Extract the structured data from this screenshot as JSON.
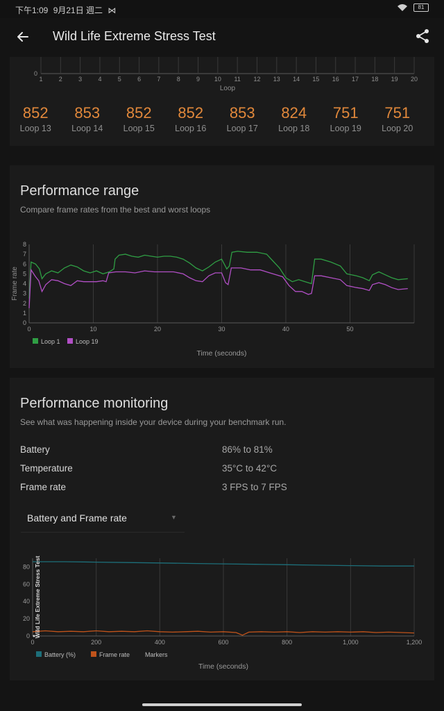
{
  "status": {
    "time": "下午1:09",
    "date": "9月21日 週二",
    "extra_icon": "nfc-icon",
    "battery": "81"
  },
  "app_bar": {
    "title": "Wild Life Extreme Stress Test"
  },
  "loops": {
    "axis_label": "Loop",
    "ticks": [
      "1",
      "2",
      "3",
      "4",
      "5",
      "6",
      "7",
      "8",
      "9",
      "10",
      "11",
      "12",
      "13",
      "14",
      "15",
      "16",
      "17",
      "18",
      "19",
      "20"
    ],
    "y_tick": "0",
    "scores": [
      {
        "value": "852",
        "label": "Loop 13"
      },
      {
        "value": "853",
        "label": "Loop 14"
      },
      {
        "value": "852",
        "label": "Loop 15"
      },
      {
        "value": "852",
        "label": "Loop 16"
      },
      {
        "value": "853",
        "label": "Loop 17"
      },
      {
        "value": "824",
        "label": "Loop 18"
      },
      {
        "value": "751",
        "label": "Loop 19"
      },
      {
        "value": "751",
        "label": "Loop 20"
      }
    ]
  },
  "performance_range": {
    "title": "Performance range",
    "subtitle": "Compare frame rates from the best and worst loops"
  },
  "performance_monitoring": {
    "title": "Performance monitoring",
    "subtitle": "See what was happening inside your device during your benchmark run.",
    "metrics": [
      {
        "label": "Battery",
        "value": "86% to 81%"
      },
      {
        "label": "Temperature",
        "value": "35°C to 42°C"
      },
      {
        "label": "Frame rate",
        "value": "3 FPS to 7 FPS"
      }
    ],
    "dropdown": "Battery and Frame rate"
  },
  "chart_data": [
    {
      "type": "line",
      "title": "",
      "xlabel": "Time (seconds)",
      "ylabel": "Frame rate",
      "xlim": [
        0,
        60
      ],
      "ylim": [
        0,
        8
      ],
      "x_ticks": [
        0,
        10,
        20,
        30,
        40,
        50
      ],
      "y_ticks": [
        0,
        1,
        2,
        3,
        4,
        5,
        6,
        7,
        8
      ],
      "legend": "bottom-left",
      "series": [
        {
          "name": "Loop 1",
          "color": "#2f9e44",
          "points": [
            [
              0,
              2.5
            ],
            [
              0.3,
              6.2
            ],
            [
              1,
              6.0
            ],
            [
              1.6,
              5.5
            ],
            [
              2,
              4.5
            ],
            [
              2.6,
              5.0
            ],
            [
              3.5,
              5.3
            ],
            [
              4.5,
              5.1
            ],
            [
              5.5,
              5.6
            ],
            [
              6.5,
              5.9
            ],
            [
              7.5,
              5.7
            ],
            [
              8.5,
              5.3
            ],
            [
              9.5,
              5.1
            ],
            [
              10.5,
              5.3
            ],
            [
              11.5,
              5.0
            ],
            [
              12.5,
              5.2
            ],
            [
              13.2,
              5.5
            ],
            [
              13.4,
              6.5
            ],
            [
              14,
              6.9
            ],
            [
              15,
              7.0
            ],
            [
              16,
              6.8
            ],
            [
              17,
              6.7
            ],
            [
              18,
              6.9
            ],
            [
              19,
              6.8
            ],
            [
              20,
              6.7
            ],
            [
              21,
              6.8
            ],
            [
              22,
              6.8
            ],
            [
              23,
              6.7
            ],
            [
              24,
              6.5
            ],
            [
              25,
              6.1
            ],
            [
              26,
              5.6
            ],
            [
              27,
              5.3
            ],
            [
              28,
              5.7
            ],
            [
              29,
              6.2
            ],
            [
              30,
              6.5
            ],
            [
              30.8,
              5.5
            ],
            [
              31.2,
              5.8
            ],
            [
              31.6,
              7.2
            ],
            [
              32.5,
              7.3
            ],
            [
              34,
              7.2
            ],
            [
              35.5,
              7.2
            ],
            [
              37,
              7.0
            ],
            [
              38,
              6.3
            ],
            [
              39,
              5.6
            ],
            [
              40,
              4.6
            ],
            [
              41,
              4.2
            ],
            [
              42,
              4.4
            ],
            [
              43,
              4.2
            ],
            [
              44,
              4.0
            ],
            [
              44.5,
              6.5
            ],
            [
              45.5,
              6.5
            ],
            [
              47,
              6.2
            ],
            [
              48.5,
              5.8
            ],
            [
              49.5,
              5.0
            ],
            [
              51,
              4.8
            ],
            [
              52,
              4.6
            ],
            [
              53,
              4.3
            ],
            [
              53.5,
              4.9
            ],
            [
              54.5,
              5.2
            ],
            [
              55.5,
              4.9
            ],
            [
              56.5,
              4.6
            ],
            [
              57.5,
              4.4
            ],
            [
              59,
              4.5
            ]
          ]
        },
        {
          "name": "Loop 19",
          "color": "#b14fc5",
          "points": [
            [
              0,
              1.5
            ],
            [
              0.3,
              5.4
            ],
            [
              1,
              4.7
            ],
            [
              1.5,
              4.3
            ],
            [
              2,
              3.2
            ],
            [
              2.6,
              3.9
            ],
            [
              3.5,
              4.4
            ],
            [
              4.5,
              4.3
            ],
            [
              5.5,
              4.0
            ],
            [
              6.5,
              3.8
            ],
            [
              7.5,
              4.3
            ],
            [
              8.5,
              4.2
            ],
            [
              9.5,
              4.2
            ],
            [
              10.5,
              4.2
            ],
            [
              11.5,
              4.3
            ],
            [
              12,
              4.2
            ],
            [
              12.4,
              5.1
            ],
            [
              13.5,
              5.2
            ],
            [
              15,
              5.2
            ],
            [
              16.5,
              5.1
            ],
            [
              18,
              5.3
            ],
            [
              19.5,
              5.2
            ],
            [
              21,
              5.2
            ],
            [
              22.5,
              5.2
            ],
            [
              24,
              5.0
            ],
            [
              25,
              4.6
            ],
            [
              26,
              4.3
            ],
            [
              27,
              4.2
            ],
            [
              28,
              4.8
            ],
            [
              29,
              5.1
            ],
            [
              30,
              5.1
            ],
            [
              30.6,
              4.1
            ],
            [
              31,
              3.9
            ],
            [
              31.5,
              5.6
            ],
            [
              33,
              5.6
            ],
            [
              34.5,
              5.4
            ],
            [
              36,
              5.4
            ],
            [
              37.5,
              5.1
            ],
            [
              38.5,
              4.9
            ],
            [
              39.5,
              4.7
            ],
            [
              40.5,
              3.8
            ],
            [
              41.5,
              3.2
            ],
            [
              42.5,
              3.2
            ],
            [
              43.5,
              2.9
            ],
            [
              44,
              3.0
            ],
            [
              44.5,
              4.8
            ],
            [
              45.5,
              4.8
            ],
            [
              47,
              4.6
            ],
            [
              48.5,
              4.4
            ],
            [
              49.5,
              3.8
            ],
            [
              51,
              3.6
            ],
            [
              52,
              3.5
            ],
            [
              53,
              3.3
            ],
            [
              53.5,
              3.9
            ],
            [
              54.5,
              4.1
            ],
            [
              55.5,
              3.9
            ],
            [
              56.5,
              3.6
            ],
            [
              57.5,
              3.4
            ],
            [
              59,
              3.5
            ]
          ]
        }
      ]
    },
    {
      "type": "line",
      "title": "",
      "annotation": "Wild Life Extreme Stress Test",
      "xlabel": "Time (seconds)",
      "ylabel": "",
      "xlim": [
        0,
        1200
      ],
      "ylim": [
        0,
        90
      ],
      "x_ticks": [
        0,
        200,
        400,
        600,
        800,
        1000,
        1200
      ],
      "x_tick_labels": [
        "0",
        "200",
        "400",
        "600",
        "800",
        "1,000",
        "1,200"
      ],
      "y_ticks": [
        0,
        20,
        40,
        60,
        80
      ],
      "legend": "bottom-left",
      "legend_entries": [
        "Battery (%)",
        "Frame rate",
        "Markers"
      ],
      "series": [
        {
          "name": "Battery (%)",
          "color": "#1d6f7a",
          "points": [
            [
              0,
              86
            ],
            [
              100,
              86
            ],
            [
              200,
              85.5
            ],
            [
              300,
              85
            ],
            [
              400,
              84.5
            ],
            [
              500,
              84
            ],
            [
              600,
              83.5
            ],
            [
              700,
              83
            ],
            [
              800,
              82.5
            ],
            [
              900,
              82
            ],
            [
              1000,
              81.5
            ],
            [
              1100,
              81
            ],
            [
              1200,
              81
            ]
          ]
        },
        {
          "name": "Frame rate",
          "color": "#c0531b",
          "points": [
            [
              0,
              5
            ],
            [
              40,
              6
            ],
            [
              80,
              5
            ],
            [
              120,
              5.5
            ],
            [
              160,
              5
            ],
            [
              200,
              6
            ],
            [
              240,
              5
            ],
            [
              280,
              5.5
            ],
            [
              320,
              5
            ],
            [
              360,
              6
            ],
            [
              400,
              5
            ],
            [
              440,
              4.5
            ],
            [
              480,
              5
            ],
            [
              520,
              5.5
            ],
            [
              560,
              4.5
            ],
            [
              600,
              5
            ],
            [
              640,
              4
            ],
            [
              660,
              1
            ],
            [
              680,
              4.5
            ],
            [
              720,
              5
            ],
            [
              760,
              4.5
            ],
            [
              800,
              5
            ],
            [
              840,
              4
            ],
            [
              880,
              5
            ],
            [
              920,
              4.5
            ],
            [
              960,
              5
            ],
            [
              1000,
              4.5
            ],
            [
              1040,
              5
            ],
            [
              1080,
              4
            ],
            [
              1120,
              4.5
            ],
            [
              1160,
              4
            ],
            [
              1200,
              3.5
            ]
          ]
        }
      ]
    }
  ]
}
